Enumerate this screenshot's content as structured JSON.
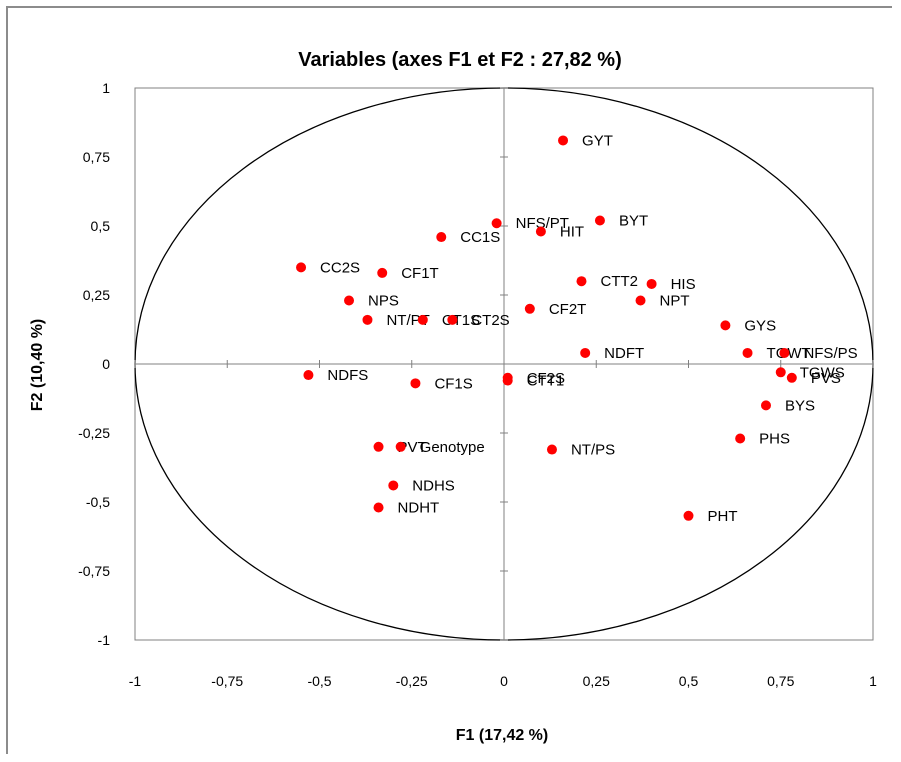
{
  "chart_data": {
    "type": "scatter",
    "title": "Variables (axes F1 et F2 : 27,82 %)",
    "xlabel": "F1 (17,42 %)",
    "ylabel": "F2 (10,40 %)",
    "xlim": [
      -1,
      1
    ],
    "ylim": [
      -1,
      1
    ],
    "x_ticks": [
      -1,
      -0.75,
      -0.5,
      -0.25,
      0,
      0.25,
      0.5,
      0.75,
      1
    ],
    "y_ticks": [
      -1,
      -0.75,
      -0.5,
      -0.25,
      0,
      0.25,
      0.5,
      0.75,
      1
    ],
    "x_tick_labels": [
      "-1",
      "-0,75",
      "-0,5",
      "-0,25",
      "0",
      "0,25",
      "0,5",
      "0,75",
      "1"
    ],
    "y_tick_labels": [
      "-1",
      "-0,75",
      "-0,5",
      "-0,25",
      "0",
      "0,25",
      "0,5",
      "0,75",
      "1"
    ],
    "grid": false,
    "unit_circle": true,
    "marker_color": "#ff0000",
    "points": [
      {
        "label": "GYT",
        "x": 0.16,
        "y": 0.81
      },
      {
        "label": "NFS/PT",
        "x": -0.02,
        "y": 0.51
      },
      {
        "label": "BYT",
        "x": 0.26,
        "y": 0.52
      },
      {
        "label": "HIT",
        "x": 0.1,
        "y": 0.48
      },
      {
        "label": "CC1S",
        "x": -0.17,
        "y": 0.46
      },
      {
        "label": "CC2S",
        "x": -0.55,
        "y": 0.35
      },
      {
        "label": "CF1T",
        "x": -0.33,
        "y": 0.33
      },
      {
        "label": "CTT2",
        "x": 0.21,
        "y": 0.3
      },
      {
        "label": "HIS",
        "x": 0.4,
        "y": 0.29
      },
      {
        "label": "NPS",
        "x": -0.42,
        "y": 0.23
      },
      {
        "label": "NPT",
        "x": 0.37,
        "y": 0.23
      },
      {
        "label": "CF2T",
        "x": 0.07,
        "y": 0.2
      },
      {
        "label": "NT/PT",
        "x": -0.37,
        "y": 0.16
      },
      {
        "label": "CT1S",
        "x": -0.22,
        "y": 0.16
      },
      {
        "label": "CT2S",
        "x": -0.14,
        "y": 0.16
      },
      {
        "label": "GYS",
        "x": 0.6,
        "y": 0.14
      },
      {
        "label": "NDFT",
        "x": 0.22,
        "y": 0.04
      },
      {
        "label": "TGWT",
        "x": 0.66,
        "y": 0.04
      },
      {
        "label": "NFS/PS",
        "x": 0.76,
        "y": 0.04
      },
      {
        "label": "TGWS",
        "x": 0.75,
        "y": -0.03
      },
      {
        "label": "PVS",
        "x": 0.78,
        "y": -0.05
      },
      {
        "label": "NDFS",
        "x": -0.53,
        "y": -0.04
      },
      {
        "label": "CF1S",
        "x": -0.24,
        "y": -0.07
      },
      {
        "label": "CF2S",
        "x": 0.01,
        "y": -0.05
      },
      {
        "label": "CTT1",
        "x": 0.01,
        "y": -0.06
      },
      {
        "label": "BYS",
        "x": 0.71,
        "y": -0.15
      },
      {
        "label": "PHS",
        "x": 0.64,
        "y": -0.27
      },
      {
        "label": "PVT",
        "x": -0.34,
        "y": -0.3
      },
      {
        "label": "Genotype",
        "x": -0.28,
        "y": -0.3
      },
      {
        "label": "NT/PS",
        "x": 0.13,
        "y": -0.31
      },
      {
        "label": "NDHS",
        "x": -0.3,
        "y": -0.44
      },
      {
        "label": "NDHT",
        "x": -0.34,
        "y": -0.52
      },
      {
        "label": "PHT",
        "x": 0.5,
        "y": -0.55
      }
    ]
  }
}
